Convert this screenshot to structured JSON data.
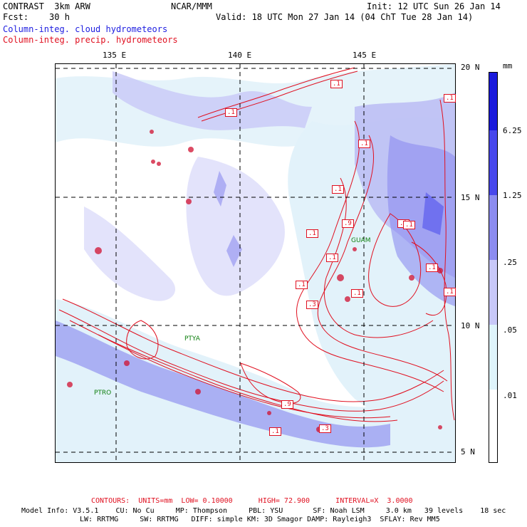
{
  "header": {
    "project": "CONTRAST",
    "model": "3km ARW",
    "org": "NCAR/MMM",
    "init": "Init: 12 UTC Sun 26 Jan 14",
    "fcst_label": "Fcst:",
    "fcst_value": "30 h",
    "valid": "Valid: 18 UTC Mon 27 Jan 14 (04 ChT Tue 28 Jan 14)",
    "field_cloud": "Column-integ. cloud hydrometeors",
    "field_precip": "Column-integ. precip. hydrometeors"
  },
  "map": {
    "lon_labels": [
      "135 E",
      "140 E",
      "145 E"
    ],
    "lat_labels": [
      "20 N",
      "15 N",
      "10 N",
      "5 N"
    ],
    "cities": [
      "GUAM",
      "PTYA",
      "PTRO"
    ],
    "contour_labels": [
      ".1",
      ".1",
      ".1",
      ".1",
      ".1",
      ".1",
      ".9",
      ".1",
      ".1",
      ".1",
      ".3",
      ".1",
      ".9",
      ".1",
      ".3",
      ".1",
      ".1",
      ".1"
    ]
  },
  "colorbar": {
    "unit": "mm",
    "labels": [
      "6.25",
      "1.25",
      ".25",
      ".05",
      ".01"
    ],
    "colors": [
      "#1a1adc",
      "#4848ec",
      "#8c8cf0",
      "#c8c8f8",
      "#dff4fb",
      "#ffffff"
    ]
  },
  "footer": {
    "contours": "CONTOURS:  UNITS=mm  LOW= 0.10000      HIGH= 72.900      INTERVAL=X  3.0000",
    "model_info_1": "Model Info: V3.5.1    CU: No Cu     MP: Thompson     PBL: YSU       SF: Noah LSM     3.0 km   39 levels    18 sec",
    "model_info_2": "LW: RRTMG     SW: RRTMG   DIFF: simple KM: 3D Smagor DAMP: Rayleigh3  SFLAY: Rev MM5"
  }
}
